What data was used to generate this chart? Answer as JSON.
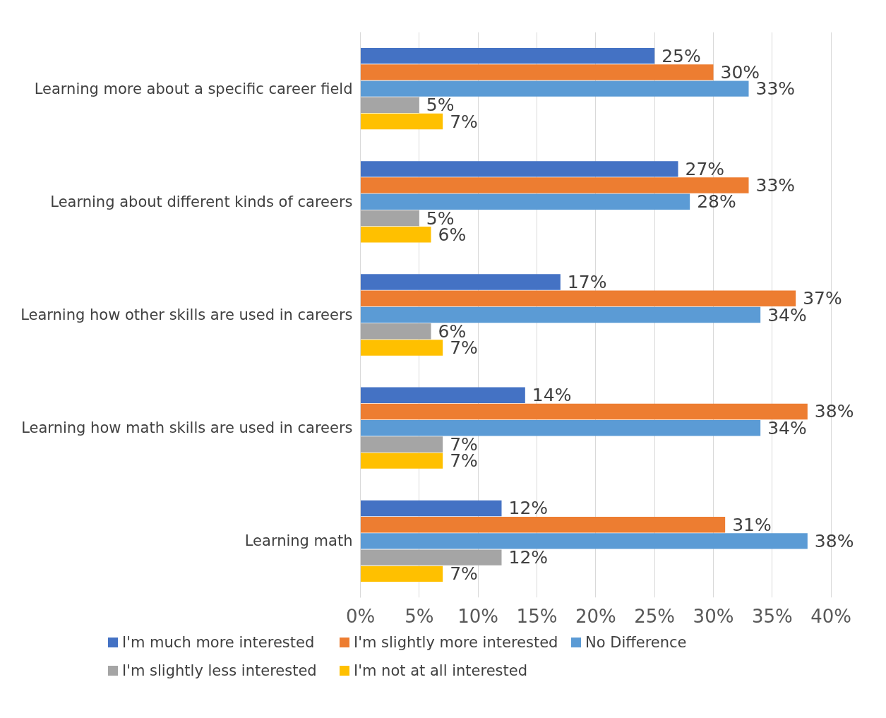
{
  "chart_data": {
    "type": "bar",
    "orientation": "horizontal",
    "categories": [
      "Learning more about a specific career field",
      "Learning about different kinds of careers",
      "Learning how other skills are used in careers",
      "Learning how math skills are used in careers",
      "Learning math"
    ],
    "series": [
      {
        "name": "I'm much more interested",
        "color": "#4472c4",
        "values": [
          25,
          27,
          17,
          14,
          12
        ],
        "value_labels": [
          "25%",
          "27%",
          "17%",
          "14%",
          "12%"
        ]
      },
      {
        "name": "I'm slightly more interested",
        "color": "#ed7d31",
        "values": [
          30,
          33,
          37,
          38,
          31
        ],
        "value_labels": [
          "30%",
          "33%",
          "37%",
          "38%",
          "31%"
        ]
      },
      {
        "name": "No Difference",
        "color": "#5b9bd5",
        "values": [
          33,
          28,
          34,
          34,
          38
        ],
        "value_labels": [
          "33%",
          "28%",
          "34%",
          "34%",
          "38%"
        ]
      },
      {
        "name": "I'm slightly less interested",
        "color": "#a5a5a5",
        "values": [
          5,
          5,
          6,
          7,
          12
        ],
        "value_labels": [
          "5%",
          "5%",
          "6%",
          "7%",
          "12%"
        ]
      },
      {
        "name": "I'm not at all interested",
        "color": "#ffc000",
        "values": [
          7,
          6,
          7,
          7,
          7
        ],
        "value_labels": [
          "7%",
          "6%",
          "7%",
          "7%",
          "7%"
        ]
      }
    ],
    "xlim": [
      0,
      40
    ],
    "xticks": [
      {
        "value": 0,
        "label": "0%"
      },
      {
        "value": 5,
        "label": "5%"
      },
      {
        "value": 10,
        "label": "10%"
      },
      {
        "value": 15,
        "label": "15%"
      },
      {
        "value": 20,
        "label": "20%"
      },
      {
        "value": 25,
        "label": "25%"
      },
      {
        "value": 30,
        "label": "30%"
      },
      {
        "value": 35,
        "label": "35%"
      },
      {
        "value": 40,
        "label": "40%"
      }
    ],
    "grid": "x",
    "legend": "bottom"
  }
}
